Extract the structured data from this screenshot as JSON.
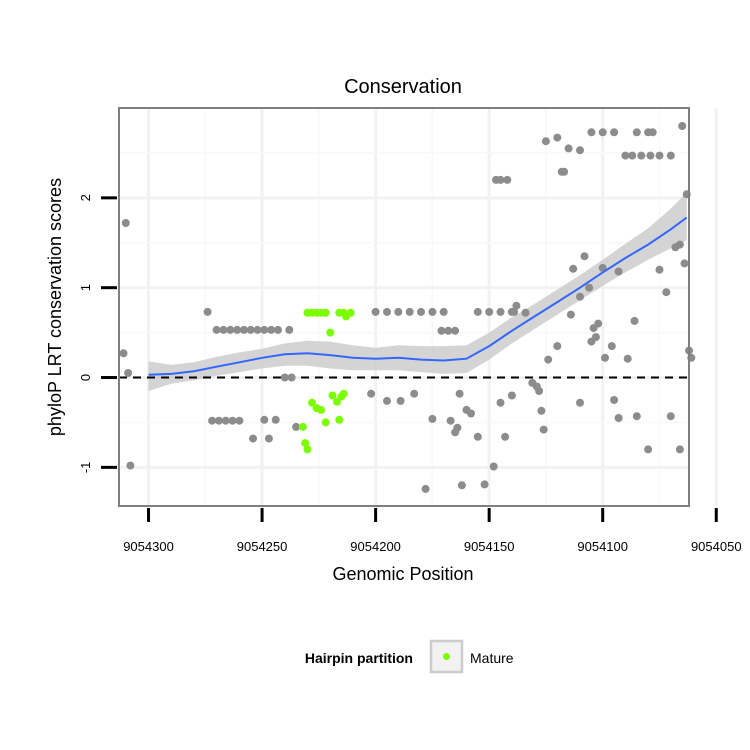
{
  "chart_data": {
    "type": "scatter",
    "title": "Conservation",
    "xlabel": "Genomic Position",
    "ylabel": "phyloP LRT conservation scores",
    "x_reversed": true,
    "xlim": [
      9054313,
      9054062
    ],
    "ylim": [
      -1.43,
      3.0
    ],
    "x_ticks": [
      9054300,
      9054250,
      9054200,
      9054150,
      9054100,
      9054050
    ],
    "x_tick_labels": [
      "9054300",
      "9054250",
      "9054200",
      "9054150",
      "9054100",
      "9054050"
    ],
    "y_ticks": [
      -1,
      0,
      1,
      2
    ],
    "y_tick_labels": [
      "-1",
      "0",
      "1",
      "2"
    ],
    "reference_line": {
      "y": 0,
      "style": "dashed"
    },
    "legend": {
      "title": "Hairpin partition",
      "entries": [
        {
          "label": "Mature",
          "color": "#7cfc00"
        }
      ],
      "position": "bottom"
    },
    "colors": {
      "other": "#8c8c8c",
      "mature": "#7cfc00",
      "smooth": "#3366ff",
      "band": "#cccccc"
    },
    "series": [
      {
        "name": "Other",
        "points": [
          [
            9054310,
            1.72
          ],
          [
            9054311,
            0.27
          ],
          [
            9054309,
            0.05
          ],
          [
            9054308,
            -0.98
          ],
          [
            9054274,
            0.73
          ],
          [
            9054270,
            0.53
          ],
          [
            9054267,
            0.53
          ],
          [
            9054264,
            0.53
          ],
          [
            9054261,
            0.53
          ],
          [
            9054258,
            0.53
          ],
          [
            9054255,
            0.53
          ],
          [
            9054252,
            0.53
          ],
          [
            9054249,
            0.53
          ],
          [
            9054246,
            0.53
          ],
          [
            9054243,
            0.53
          ],
          [
            9054238,
            0.53
          ],
          [
            9054272,
            -0.48
          ],
          [
            9054269,
            -0.48
          ],
          [
            9054266,
            -0.48
          ],
          [
            9054263,
            -0.48
          ],
          [
            9054260,
            -0.48
          ],
          [
            9054254,
            -0.68
          ],
          [
            9054249,
            -0.47
          ],
          [
            9054247,
            -0.68
          ],
          [
            9054244,
            -0.47
          ],
          [
            9054240,
            0.0
          ],
          [
            9054237,
            0.0
          ],
          [
            9054235,
            -0.55
          ],
          [
            9054200,
            0.73
          ],
          [
            9054195,
            0.73
          ],
          [
            9054190,
            0.73
          ],
          [
            9054185,
            0.73
          ],
          [
            9054180,
            0.73
          ],
          [
            9054175,
            0.73
          ],
          [
            9054170,
            0.73
          ],
          [
            9054171,
            0.52
          ],
          [
            9054168,
            0.52
          ],
          [
            9054165,
            0.52
          ],
          [
            9054202,
            -0.18
          ],
          [
            9054195,
            -0.26
          ],
          [
            9054189,
            -0.26
          ],
          [
            9054183,
            -0.18
          ],
          [
            9054178,
            -1.24
          ],
          [
            9054175,
            -0.46
          ],
          [
            9054167,
            -0.48
          ],
          [
            9054165,
            -0.61
          ],
          [
            9054163,
            -0.18
          ],
          [
            9054160,
            -0.36
          ],
          [
            9054158,
            -0.4
          ],
          [
            9054155,
            -0.66
          ],
          [
            9054164,
            -0.56
          ],
          [
            9054162,
            -1.2
          ],
          [
            9054152,
            -1.19
          ],
          [
            9054148,
            -0.99
          ],
          [
            9054145,
            -0.28
          ],
          [
            9054143,
            -0.66
          ],
          [
            9054140,
            -0.2
          ],
          [
            9054155,
            0.73
          ],
          [
            9054150,
            0.73
          ],
          [
            9054145,
            0.73
          ],
          [
            9054140,
            0.73
          ],
          [
            9054139,
            0.73
          ],
          [
            9054147,
            2.2
          ],
          [
            9054145,
            2.2
          ],
          [
            9054142,
            2.2
          ],
          [
            9054138,
            0.8
          ],
          [
            9054134,
            0.72
          ],
          [
            9054131,
            -0.06
          ],
          [
            9054129,
            -0.1
          ],
          [
            9054128,
            -0.15
          ],
          [
            9054127,
            -0.37
          ],
          [
            9054126,
            -0.58
          ],
          [
            9054124,
            0.2
          ],
          [
            9054125,
            2.63
          ],
          [
            9054120,
            2.67
          ],
          [
            9054115,
            2.55
          ],
          [
            9054110,
            2.53
          ],
          [
            9054105,
            2.73
          ],
          [
            9054100,
            2.73
          ],
          [
            9054095,
            2.73
          ],
          [
            9054090,
            2.47
          ],
          [
            9054087,
            2.47
          ],
          [
            9054083,
            2.47
          ],
          [
            9054079,
            2.47
          ],
          [
            9054075,
            2.47
          ],
          [
            9054070,
            2.47
          ],
          [
            9054085,
            2.73
          ],
          [
            9054080,
            2.73
          ],
          [
            9054078,
            2.73
          ],
          [
            9054118,
            2.29
          ],
          [
            9054117,
            2.29
          ],
          [
            9054114,
            0.7
          ],
          [
            9054120,
            0.35
          ],
          [
            9054113,
            1.21
          ],
          [
            9054110,
            0.9
          ],
          [
            9054108,
            1.35
          ],
          [
            9054106,
            1.0
          ],
          [
            9054104,
            0.55
          ],
          [
            9054103,
            0.45
          ],
          [
            9054102,
            0.6
          ],
          [
            9054100,
            1.22
          ],
          [
            9054099,
            0.22
          ],
          [
            9054096,
            0.35
          ],
          [
            9054093,
            1.18
          ],
          [
            9054089,
            0.21
          ],
          [
            9054086,
            0.63
          ],
          [
            9054110,
            -0.28
          ],
          [
            9054105,
            0.4
          ],
          [
            9054095,
            -0.25
          ],
          [
            9054093,
            -0.45
          ],
          [
            9054085,
            -0.43
          ],
          [
            9054080,
            -0.8
          ],
          [
            9054075,
            1.2
          ],
          [
            9054072,
            0.95
          ],
          [
            9054068,
            1.45
          ],
          [
            9054066,
            1.48
          ],
          [
            9054065,
            2.8
          ],
          [
            9054063,
            2.04
          ],
          [
            9054070,
            -0.43
          ],
          [
            9054066,
            -0.8
          ],
          [
            9054064,
            1.27
          ],
          [
            9054062,
            0.3
          ],
          [
            9054061,
            0.22
          ]
        ]
      },
      {
        "name": "Mature",
        "points": [
          [
            9054230,
            0.72
          ],
          [
            9054228,
            0.72
          ],
          [
            9054226,
            0.72
          ],
          [
            9054224,
            0.72
          ],
          [
            9054222,
            0.72
          ],
          [
            9054216,
            0.72
          ],
          [
            9054214,
            0.72
          ],
          [
            9054213,
            0.68
          ],
          [
            9054211,
            0.72
          ],
          [
            9054220,
            0.5
          ],
          [
            9054228,
            -0.28
          ],
          [
            9054226,
            -0.34
          ],
          [
            9054224,
            -0.36
          ],
          [
            9054222,
            -0.5
          ],
          [
            9054219,
            -0.2
          ],
          [
            9054217,
            -0.27
          ],
          [
            9054216,
            -0.47
          ],
          [
            9054215,
            -0.21
          ],
          [
            9054214,
            -0.18
          ],
          [
            9054232,
            -0.55
          ],
          [
            9054231,
            -0.73
          ],
          [
            9054230,
            -0.8
          ]
        ]
      }
    ],
    "smooth": {
      "x": [
        9054300,
        9054290,
        9054280,
        9054270,
        9054260,
        9054250,
        9054240,
        9054230,
        9054220,
        9054210,
        9054200,
        9054190,
        9054180,
        9054170,
        9054160,
        9054150,
        9054140,
        9054130,
        9054120,
        9054110,
        9054100,
        9054090,
        9054080,
        9054070,
        9054063
      ],
      "y": [
        0.03,
        0.04,
        0.07,
        0.12,
        0.17,
        0.22,
        0.26,
        0.27,
        0.25,
        0.22,
        0.21,
        0.22,
        0.2,
        0.19,
        0.21,
        0.35,
        0.52,
        0.68,
        0.84,
        1.0,
        1.17,
        1.33,
        1.48,
        1.65,
        1.78
      ],
      "upper": [
        0.18,
        0.14,
        0.17,
        0.23,
        0.28,
        0.32,
        0.38,
        0.41,
        0.4,
        0.36,
        0.33,
        0.36,
        0.35,
        0.35,
        0.36,
        0.5,
        0.67,
        0.82,
        0.98,
        1.14,
        1.31,
        1.49,
        1.66,
        1.88,
        2.06
      ],
      "lower": [
        -0.15,
        -0.07,
        -0.03,
        0.02,
        0.06,
        0.1,
        0.13,
        0.13,
        0.1,
        0.08,
        0.08,
        0.08,
        0.06,
        0.04,
        0.05,
        0.2,
        0.38,
        0.54,
        0.7,
        0.86,
        1.02,
        1.17,
        1.31,
        1.44,
        1.53
      ]
    }
  }
}
